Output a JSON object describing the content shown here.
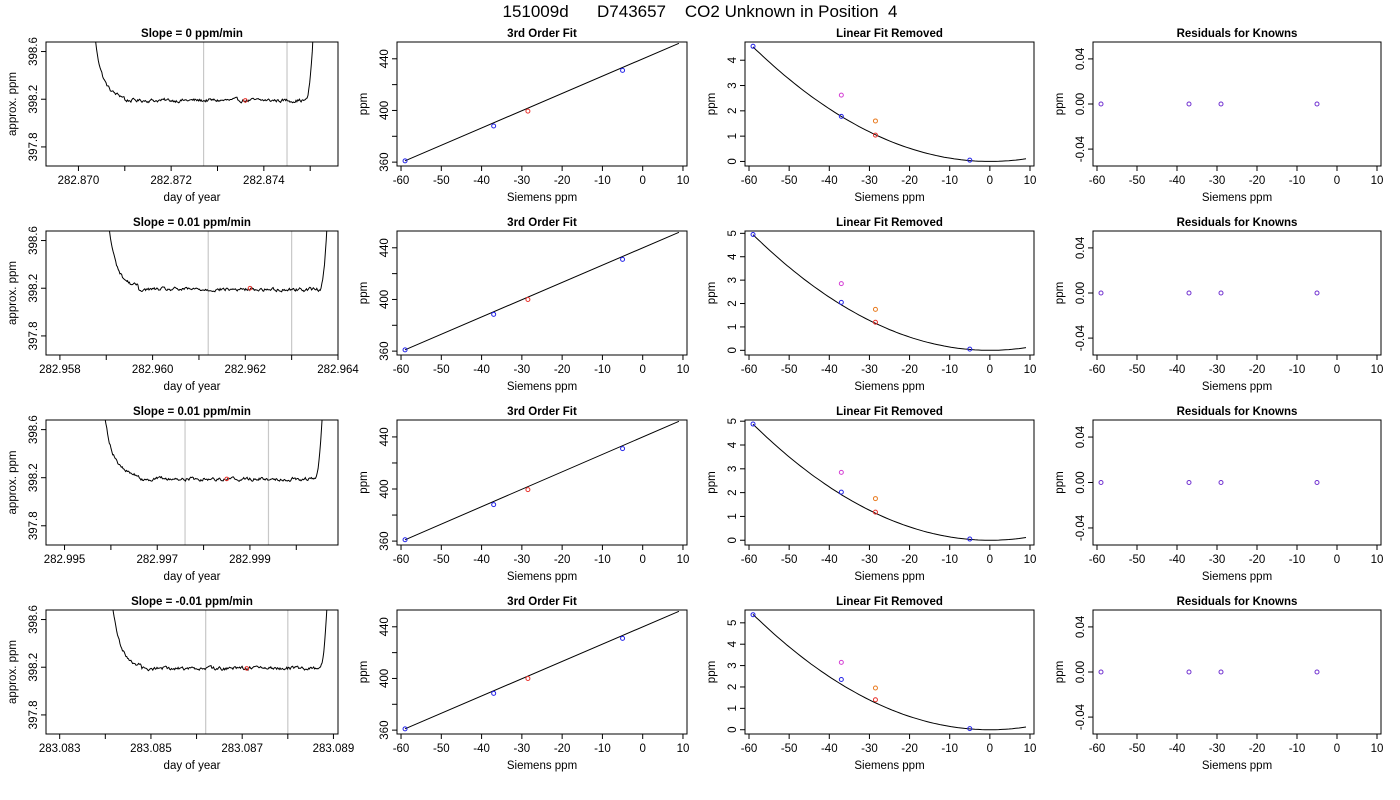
{
  "figure": {
    "title": "151009d      D743657    CO2 Unknown in Position  4"
  },
  "colors": {
    "line": "#000000",
    "vline": "#c8c8c8",
    "marker_red": "#e8302a",
    "marker_blue": "#2323e8",
    "marker_magenta": "#d43fd4",
    "marker_orange": "#e87a1e",
    "marker_purple": "#7030d0"
  },
  "chart_data": [
    {
      "panel": "r1c1",
      "type": "line",
      "title": "Slope =  0  ppm/min",
      "xlabel": "day of year",
      "ylabel": "approx. ppm",
      "xlim": [
        282.8693,
        282.8756
      ],
      "ylim": [
        397.64,
        398.68
      ],
      "xticks": [
        282.87,
        282.871,
        282.872,
        282.873,
        282.874,
        282.875
      ],
      "xtick_labels": [
        "282.870",
        "",
        "282.872",
        "",
        "282.874",
        ""
      ],
      "yticks": [
        397.8,
        398.2,
        398.6
      ],
      "ytick_labels": [
        "397.8",
        "398.2",
        "398.6"
      ],
      "trace": {
        "start": 282.8703,
        "end": 282.8751,
        "plateau_start": 282.871,
        "plateau_end": 282.8749,
        "level": 398.19,
        "edge_high": 398.9
      },
      "vlines": [
        282.8727,
        282.8745
      ],
      "marker": {
        "x": 282.8736,
        "y": 398.19
      }
    },
    {
      "panel": "r1c2",
      "type": "scatter",
      "title": "3rd Order Fit",
      "xlabel": "Siemens ppm",
      "ylabel": "ppm",
      "xlim": [
        -61,
        11
      ],
      "ylim": [
        357,
        453
      ],
      "xticks": [
        -60,
        -50,
        -40,
        -30,
        -20,
        -10,
        0,
        10
      ],
      "xtick_labels": [
        "-60",
        "-50",
        "-40",
        "-30",
        "-20",
        "-10",
        "0",
        "10"
      ],
      "yticks": [
        360,
        380,
        400,
        420,
        440
      ],
      "ytick_labels": [
        "360",
        "",
        "400",
        "",
        "440"
      ],
      "fit": {
        "from": [
          -59,
          361
        ],
        "to": [
          9,
          452
        ]
      },
      "points": [
        {
          "x": -59,
          "y": 361,
          "color": "blue"
        },
        {
          "x": -37,
          "y": 388,
          "color": "blue"
        },
        {
          "x": -28.5,
          "y": 399.5,
          "color": "red"
        },
        {
          "x": -5,
          "y": 431,
          "color": "blue"
        }
      ]
    },
    {
      "panel": "r1c3",
      "type": "scatter",
      "title": "Linear Fit Removed",
      "xlabel": "Siemens ppm",
      "ylabel": "ppm",
      "xlim": [
        -61,
        11
      ],
      "ylim": [
        -0.18,
        4.72
      ],
      "xticks": [
        -60,
        -50,
        -40,
        -30,
        -20,
        -10,
        0,
        10
      ],
      "xtick_labels": [
        "-60",
        "-50",
        "-40",
        "-30",
        "-20",
        "-10",
        "0",
        "10"
      ],
      "yticks": [
        0,
        1,
        2,
        3,
        4
      ],
      "ytick_labels": [
        "0",
        "1",
        "2",
        "3",
        "4"
      ],
      "curve": {
        "a": 0.0013,
        "vertex": 0,
        "span": [
          -59,
          9
        ]
      },
      "points": [
        {
          "x": -59,
          "y": 4.55,
          "color": "blue"
        },
        {
          "x": -37,
          "y": 1.78,
          "color": "blue"
        },
        {
          "x": -28.5,
          "y": 1.04,
          "color": "red"
        },
        {
          "x": -5,
          "y": 0.05,
          "color": "blue"
        },
        {
          "x": -37,
          "y": 2.62,
          "color": "magenta"
        },
        {
          "x": -28.5,
          "y": 1.6,
          "color": "orange"
        }
      ]
    },
    {
      "panel": "r1c4",
      "type": "scatter",
      "title": "Residuals for Knowns",
      "xlabel": "Siemens ppm",
      "ylabel": "ppm",
      "xlim": [
        -61,
        11
      ],
      "ylim": [
        -0.055,
        0.055
      ],
      "xticks": [
        -60,
        -50,
        -40,
        -30,
        -20,
        -10,
        0,
        10
      ],
      "xtick_labels": [
        "-60",
        "-50",
        "-40",
        "-30",
        "-20",
        "-10",
        "0",
        "10"
      ],
      "yticks": [
        -0.04,
        0.0,
        0.04
      ],
      "ytick_labels": [
        "-0.04",
        "0.00",
        "0.04"
      ],
      "points": [
        {
          "x": -59,
          "y": 0,
          "color": "purple"
        },
        {
          "x": -37,
          "y": 0,
          "color": "purple"
        },
        {
          "x": -29,
          "y": 0,
          "color": "purple"
        },
        {
          "x": -5,
          "y": 0,
          "color": "purple"
        }
      ]
    },
    {
      "panel": "r2c1",
      "type": "line",
      "title": "Slope =  0.01  ppm/min",
      "xlabel": "day of year",
      "ylabel": "approx. ppm",
      "xlim": [
        282.9577,
        282.964
      ],
      "ylim": [
        397.64,
        398.68
      ],
      "xticks": [
        282.958,
        282.959,
        282.96,
        282.961,
        282.962,
        282.963,
        282.964
      ],
      "xtick_labels": [
        "282.958",
        "",
        "282.960",
        "",
        "282.962",
        "",
        "282.964"
      ],
      "yticks": [
        397.8,
        398.2,
        398.6
      ],
      "ytick_labels": [
        "397.8",
        "398.2",
        "398.6"
      ],
      "trace": {
        "start": 282.959,
        "end": 282.9638,
        "plateau_start": 282.9597,
        "plateau_end": 282.9636,
        "level": 398.19,
        "edge_high": 398.9
      },
      "vlines": [
        282.9612,
        282.963
      ],
      "marker": {
        "x": 282.9621,
        "y": 398.2
      }
    },
    {
      "panel": "r2c2",
      "type": "scatter",
      "title": "3rd Order Fit",
      "xlabel": "Siemens ppm",
      "ylabel": "ppm",
      "xlim": [
        -61,
        11
      ],
      "ylim": [
        357,
        453
      ],
      "xticks": [
        -60,
        -50,
        -40,
        -30,
        -20,
        -10,
        0,
        10
      ],
      "xtick_labels": [
        "-60",
        "-50",
        "-40",
        "-30",
        "-20",
        "-10",
        "0",
        "10"
      ],
      "yticks": [
        360,
        380,
        400,
        420,
        440
      ],
      "ytick_labels": [
        "360",
        "",
        "400",
        "",
        "440"
      ],
      "fit": {
        "from": [
          -59,
          361
        ],
        "to": [
          9,
          452
        ]
      },
      "points": [
        {
          "x": -59,
          "y": 361,
          "color": "blue"
        },
        {
          "x": -37,
          "y": 388.5,
          "color": "blue"
        },
        {
          "x": -28.5,
          "y": 400,
          "color": "red"
        },
        {
          "x": -5,
          "y": 431,
          "color": "blue"
        }
      ]
    },
    {
      "panel": "r2c3",
      "type": "scatter",
      "title": "Linear Fit Removed",
      "xlabel": "Siemens ppm",
      "ylabel": "ppm",
      "xlim": [
        -61,
        11
      ],
      "ylim": [
        -0.2,
        5.1
      ],
      "xticks": [
        -60,
        -50,
        -40,
        -30,
        -20,
        -10,
        0,
        10
      ],
      "xtick_labels": [
        "-60",
        "-50",
        "-40",
        "-30",
        "-20",
        "-10",
        "0",
        "10"
      ],
      "yticks": [
        0,
        1,
        2,
        3,
        4,
        5
      ],
      "ytick_labels": [
        "0",
        "1",
        "2",
        "3",
        "4",
        "5"
      ],
      "curve": {
        "a": 0.00142,
        "vertex": 0,
        "span": [
          -59,
          9
        ]
      },
      "points": [
        {
          "x": -59,
          "y": 4.95,
          "color": "blue"
        },
        {
          "x": -37,
          "y": 2.05,
          "color": "blue"
        },
        {
          "x": -28.5,
          "y": 1.2,
          "color": "red"
        },
        {
          "x": -5,
          "y": 0.05,
          "color": "blue"
        },
        {
          "x": -37,
          "y": 2.85,
          "color": "magenta"
        },
        {
          "x": -28.5,
          "y": 1.75,
          "color": "orange"
        }
      ]
    },
    {
      "panel": "r2c4",
      "type": "scatter",
      "title": "Residuals for Knowns",
      "xlabel": "Siemens ppm",
      "ylabel": "ppm",
      "xlim": [
        -61,
        11
      ],
      "ylim": [
        -0.055,
        0.055
      ],
      "xticks": [
        -60,
        -50,
        -40,
        -30,
        -20,
        -10,
        0,
        10
      ],
      "xtick_labels": [
        "-60",
        "-50",
        "-40",
        "-30",
        "-20",
        "-10",
        "0",
        "10"
      ],
      "yticks": [
        -0.04,
        0.0,
        0.04
      ],
      "ytick_labels": [
        "-0.04",
        "0.00",
        "0.04"
      ],
      "points": [
        {
          "x": -59,
          "y": 0,
          "color": "purple"
        },
        {
          "x": -37,
          "y": 0,
          "color": "purple"
        },
        {
          "x": -29,
          "y": 0,
          "color": "purple"
        },
        {
          "x": -5,
          "y": 0,
          "color": "purple"
        }
      ]
    },
    {
      "panel": "r3c1",
      "type": "line",
      "title": "Slope =  0.01  ppm/min",
      "xlabel": "day of year",
      "ylabel": "approx. ppm",
      "xlim": [
        282.9946,
        283.0009
      ],
      "ylim": [
        397.64,
        398.68
      ],
      "xticks": [
        282.995,
        282.996,
        282.997,
        282.998,
        282.999,
        283.0
      ],
      "xtick_labels": [
        "282.995",
        "",
        "282.997",
        "",
        "282.999",
        ""
      ],
      "yticks": [
        397.8,
        398.2,
        398.6
      ],
      "ytick_labels": [
        "397.8",
        "398.2",
        "398.6"
      ],
      "trace": {
        "start": 282.9958,
        "end": 283.0006,
        "plateau_start": 282.9966,
        "plateau_end": 283.0004,
        "level": 398.19,
        "edge_high": 398.9
      },
      "vlines": [
        282.9976,
        282.9994
      ],
      "marker": {
        "x": 282.9985,
        "y": 398.19
      }
    },
    {
      "panel": "r3c2",
      "type": "scatter",
      "title": "3rd Order Fit",
      "xlabel": "Siemens ppm",
      "ylabel": "ppm",
      "xlim": [
        -61,
        11
      ],
      "ylim": [
        357,
        453
      ],
      "xticks": [
        -60,
        -50,
        -40,
        -30,
        -20,
        -10,
        0,
        10
      ],
      "xtick_labels": [
        "-60",
        "-50",
        "-40",
        "-30",
        "-20",
        "-10",
        "0",
        "10"
      ],
      "yticks": [
        360,
        380,
        400,
        420,
        440
      ],
      "ytick_labels": [
        "360",
        "",
        "400",
        "",
        "440"
      ],
      "fit": {
        "from": [
          -59,
          361
        ],
        "to": [
          9,
          452
        ]
      },
      "points": [
        {
          "x": -59,
          "y": 361,
          "color": "blue"
        },
        {
          "x": -37,
          "y": 388,
          "color": "blue"
        },
        {
          "x": -28.5,
          "y": 399.5,
          "color": "red"
        },
        {
          "x": -5,
          "y": 431,
          "color": "blue"
        }
      ]
    },
    {
      "panel": "r3c3",
      "type": "scatter",
      "title": "Linear Fit Removed",
      "xlabel": "Siemens ppm",
      "ylabel": "ppm",
      "xlim": [
        -61,
        11
      ],
      "ylim": [
        -0.2,
        5.05
      ],
      "xticks": [
        -60,
        -50,
        -40,
        -30,
        -20,
        -10,
        0,
        10
      ],
      "xtick_labels": [
        "-60",
        "-50",
        "-40",
        "-30",
        "-20",
        "-10",
        "0",
        "10"
      ],
      "yticks": [
        0,
        1,
        2,
        3,
        4,
        5
      ],
      "ytick_labels": [
        "0",
        "1",
        "2",
        "3",
        "4",
        "5"
      ],
      "curve": {
        "a": 0.0014,
        "vertex": 0,
        "span": [
          -59,
          9
        ]
      },
      "points": [
        {
          "x": -59,
          "y": 4.88,
          "color": "blue"
        },
        {
          "x": -37,
          "y": 2.02,
          "color": "blue"
        },
        {
          "x": -28.5,
          "y": 1.18,
          "color": "red"
        },
        {
          "x": -5,
          "y": 0.05,
          "color": "blue"
        },
        {
          "x": -37,
          "y": 2.85,
          "color": "magenta"
        },
        {
          "x": -28.5,
          "y": 1.75,
          "color": "orange"
        }
      ]
    },
    {
      "panel": "r3c4",
      "type": "scatter",
      "title": "Residuals for Knowns",
      "xlabel": "Siemens ppm",
      "ylabel": "ppm",
      "xlim": [
        -61,
        11
      ],
      "ylim": [
        -0.055,
        0.055
      ],
      "xticks": [
        -60,
        -50,
        -40,
        -30,
        -20,
        -10,
        0,
        10
      ],
      "xtick_labels": [
        "-60",
        "-50",
        "-40",
        "-30",
        "-20",
        "-10",
        "0",
        "10"
      ],
      "yticks": [
        -0.04,
        0.0,
        0.04
      ],
      "ytick_labels": [
        "-0.04",
        "0.00",
        "0.04"
      ],
      "points": [
        {
          "x": -59,
          "y": 0,
          "color": "purple"
        },
        {
          "x": -37,
          "y": 0,
          "color": "purple"
        },
        {
          "x": -29,
          "y": 0,
          "color": "purple"
        },
        {
          "x": -5,
          "y": 0,
          "color": "purple"
        }
      ]
    },
    {
      "panel": "r4c1",
      "type": "line",
      "title": "Slope =  -0.01  ppm/min",
      "xlabel": "day of year",
      "ylabel": "approx. ppm",
      "xlim": [
        283.0827,
        283.0891
      ],
      "ylim": [
        397.64,
        398.68
      ],
      "xticks": [
        283.083,
        283.084,
        283.085,
        283.086,
        283.087,
        283.088,
        283.089
      ],
      "xtick_labels": [
        "283.083",
        "",
        "283.085",
        "",
        "283.087",
        "",
        "283.089"
      ],
      "yticks": [
        397.8,
        398.2,
        398.6
      ],
      "ytick_labels": [
        "397.8",
        "398.2",
        "398.6"
      ],
      "trace": {
        "start": 283.0841,
        "end": 283.0889,
        "plateau_start": 283.0848,
        "plateau_end": 283.0887,
        "level": 398.19,
        "edge_high": 398.9
      },
      "vlines": [
        283.0862,
        283.088
      ],
      "marker": {
        "x": 283.0871,
        "y": 398.19
      }
    },
    {
      "panel": "r4c2",
      "type": "scatter",
      "title": "3rd Order Fit",
      "xlabel": "Siemens ppm",
      "ylabel": "ppm",
      "xlim": [
        -61,
        11
      ],
      "ylim": [
        357,
        453
      ],
      "xticks": [
        -60,
        -50,
        -40,
        -30,
        -20,
        -10,
        0,
        10
      ],
      "xtick_labels": [
        "-60",
        "-50",
        "-40",
        "-30",
        "-20",
        "-10",
        "0",
        "10"
      ],
      "yticks": [
        360,
        380,
        400,
        420,
        440
      ],
      "ytick_labels": [
        "360",
        "",
        "400",
        "",
        "440"
      ],
      "fit": {
        "from": [
          -59,
          361
        ],
        "to": [
          9,
          452
        ]
      },
      "points": [
        {
          "x": -59,
          "y": 361,
          "color": "blue"
        },
        {
          "x": -37,
          "y": 388.5,
          "color": "blue"
        },
        {
          "x": -28.5,
          "y": 400,
          "color": "red"
        },
        {
          "x": -5,
          "y": 431,
          "color": "blue"
        }
      ]
    },
    {
      "panel": "r4c3",
      "type": "scatter",
      "title": "Linear Fit Removed",
      "xlabel": "Siemens ppm",
      "ylabel": "ppm",
      "xlim": [
        -61,
        11
      ],
      "ylim": [
        -0.2,
        5.6
      ],
      "xticks": [
        -60,
        -50,
        -40,
        -30,
        -20,
        -10,
        0,
        10
      ],
      "xtick_labels": [
        "-60",
        "-50",
        "-40",
        "-30",
        "-20",
        "-10",
        "0",
        "10"
      ],
      "yticks": [
        0,
        1,
        2,
        3,
        4,
        5
      ],
      "ytick_labels": [
        "0",
        "1",
        "2",
        "3",
        "4",
        "5"
      ],
      "curve": {
        "a": 0.00155,
        "vertex": 0,
        "span": [
          -59,
          9
        ]
      },
      "points": [
        {
          "x": -59,
          "y": 5.38,
          "color": "blue"
        },
        {
          "x": -37,
          "y": 2.35,
          "color": "blue"
        },
        {
          "x": -28.5,
          "y": 1.4,
          "color": "red"
        },
        {
          "x": -5,
          "y": 0.05,
          "color": "blue"
        },
        {
          "x": -37,
          "y": 3.15,
          "color": "magenta"
        },
        {
          "x": -28.5,
          "y": 1.95,
          "color": "orange"
        }
      ]
    },
    {
      "panel": "r4c4",
      "type": "scatter",
      "title": "Residuals for Knowns",
      "xlabel": "Siemens ppm",
      "ylabel": "ppm",
      "xlim": [
        -61,
        11
      ],
      "ylim": [
        -0.055,
        0.055
      ],
      "xticks": [
        -60,
        -50,
        -40,
        -30,
        -20,
        -10,
        0,
        10
      ],
      "xtick_labels": [
        "-60",
        "-50",
        "-40",
        "-30",
        "-20",
        "-10",
        "0",
        "10"
      ],
      "yticks": [
        -0.04,
        0.0,
        0.04
      ],
      "ytick_labels": [
        "-0.04",
        "0.00",
        "0.04"
      ],
      "points": [
        {
          "x": -59,
          "y": 0,
          "color": "purple"
        },
        {
          "x": -37,
          "y": 0,
          "color": "purple"
        },
        {
          "x": -29,
          "y": 0,
          "color": "purple"
        },
        {
          "x": -5,
          "y": 0,
          "color": "purple"
        }
      ]
    }
  ]
}
